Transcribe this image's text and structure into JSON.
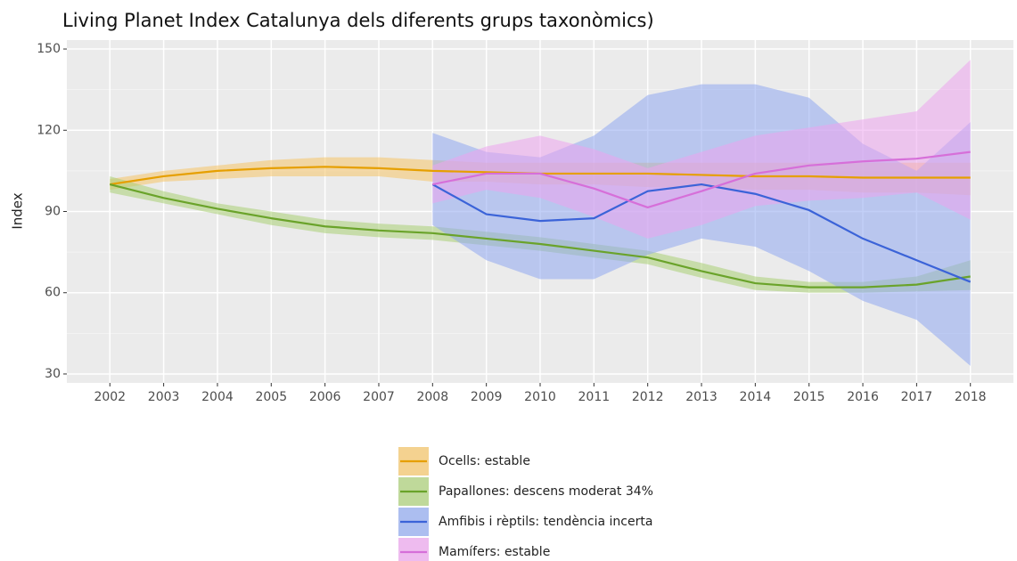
{
  "chart_data": {
    "type": "line",
    "title": "Living Planet Index Catalunya dels diferents grups taxonòmics)",
    "y_label": "Index",
    "x": [
      2002,
      2003,
      2004,
      2005,
      2006,
      2007,
      2008,
      2009,
      2010,
      2011,
      2012,
      2013,
      2014,
      2015,
      2016,
      2017,
      2018
    ],
    "xlim": [
      2001.2,
      2018.8
    ],
    "xticks": [
      2002,
      2003,
      2004,
      2005,
      2006,
      2007,
      2008,
      2009,
      2010,
      2011,
      2012,
      2013,
      2014,
      2015,
      2016,
      2017,
      2018
    ],
    "ylim": [
      26.7,
      153.3
    ],
    "yticks": [
      30,
      60,
      90,
      120,
      150
    ],
    "grid": true,
    "legend": "bottom",
    "series": [
      {
        "name": "Ocells: estable",
        "color": "#e69f00",
        "band_color": "#f5c467",
        "values": [
          100,
          103,
          105,
          106,
          106.5,
          106,
          105,
          104.5,
          104,
          104,
          104,
          103.5,
          103,
          103,
          102.5,
          102.5,
          102.5
        ],
        "lower": [
          98,
          101,
          102,
          103,
          103,
          103,
          101,
          101,
          100,
          100,
          99,
          99,
          98,
          98,
          97,
          97,
          96
        ],
        "upper": [
          102,
          105,
          107,
          109,
          110,
          110,
          109,
          108,
          108,
          108,
          108,
          108,
          108,
          108,
          108,
          108,
          108
        ]
      },
      {
        "name": "Papallones: descens moderat 34%",
        "color": "#6aa32a",
        "band_color": "#a9cf75",
        "values": [
          100,
          95,
          91,
          87.5,
          84.5,
          83,
          82,
          80,
          78,
          75.5,
          73,
          68,
          63.5,
          62,
          62,
          63,
          66
        ],
        "lower": [
          97,
          93,
          89,
          85,
          82,
          80.5,
          79.5,
          77.5,
          75.5,
          73,
          70.5,
          65.5,
          61,
          60,
          60,
          60.5,
          61
        ],
        "upper": [
          103,
          97.5,
          93,
          90,
          87,
          85.5,
          84.5,
          82.5,
          80.5,
          78,
          75.5,
          71,
          66,
          64,
          64,
          66,
          72
        ]
      },
      {
        "name": "Amfibis i rèptils: tendència incerta",
        "color": "#3b63d8",
        "band_color": "#8fa8f0",
        "values": [
          null,
          null,
          null,
          null,
          null,
          null,
          100,
          89,
          86.5,
          87.5,
          97.5,
          100,
          96.5,
          90.5,
          80,
          72,
          64
        ],
        "lower": [
          null,
          null,
          null,
          null,
          null,
          null,
          85,
          72,
          65,
          65,
          74,
          80,
          77,
          68,
          57,
          50,
          33
        ],
        "upper": [
          null,
          null,
          null,
          null,
          null,
          null,
          119,
          112,
          110,
          118,
          133,
          137,
          137,
          132,
          115,
          105,
          123
        ]
      },
      {
        "name": "Mamífers: estable",
        "color": "#d66fd9",
        "band_color": "#eda4ee",
        "values": [
          null,
          null,
          null,
          null,
          null,
          null,
          100,
          104,
          104,
          98.5,
          91.5,
          97.5,
          104,
          107,
          108.5,
          109.5,
          112
        ],
        "lower": [
          null,
          null,
          null,
          null,
          null,
          null,
          93,
          98,
          95,
          88,
          80,
          85,
          92,
          94,
          95,
          97,
          87
        ],
        "upper": [
          null,
          null,
          null,
          null,
          null,
          null,
          107,
          114,
          118,
          113,
          106,
          112,
          118,
          121,
          124,
          127,
          146
        ]
      }
    ]
  }
}
